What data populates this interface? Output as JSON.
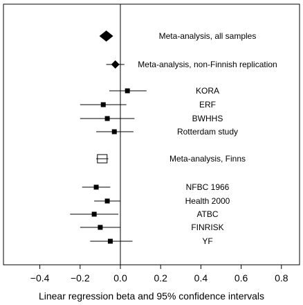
{
  "chart_data": {
    "type": "forest",
    "xlabel": "Linear regression beta and 95% confidence intervals",
    "xlim": [
      -0.5,
      0.85
    ],
    "xticks": [
      -0.4,
      -0.2,
      0.0,
      0.2,
      0.4,
      0.6,
      0.8
    ],
    "xtick_labels": [
      "−0.4",
      "−0.2",
      "0.0",
      "0.2",
      "0.4",
      "0.6",
      "0.8"
    ],
    "reference_line": 0,
    "grid": false,
    "rows": [
      {
        "label": "Meta-analysis, all samples",
        "estimate": -0.07,
        "lower": -0.085,
        "upper": -0.055,
        "marker": "diamond-large"
      },
      {
        "label": "Meta-analysis, non-Finnish replication",
        "estimate": -0.025,
        "lower": -0.07,
        "upper": 0.02,
        "marker": "diamond"
      },
      {
        "label": "KORA",
        "estimate": 0.035,
        "lower": -0.055,
        "upper": 0.13,
        "marker": "square"
      },
      {
        "label": "ERF",
        "estimate": -0.085,
        "lower": -0.2,
        "upper": 0.03,
        "marker": "square"
      },
      {
        "label": "BWHHS",
        "estimate": -0.065,
        "lower": -0.2,
        "upper": 0.07,
        "marker": "square"
      },
      {
        "label": "Rotterdam study",
        "estimate": -0.03,
        "lower": -0.12,
        "upper": 0.065,
        "marker": "square"
      },
      {
        "label": "Meta-analysis, Finns",
        "estimate": -0.09,
        "lower": -0.12,
        "upper": -0.06,
        "marker": "open-square"
      },
      {
        "label": "NFBC 1966",
        "estimate": -0.12,
        "lower": -0.19,
        "upper": -0.05,
        "marker": "square"
      },
      {
        "label": "Health 2000",
        "estimate": -0.065,
        "lower": -0.13,
        "upper": 0.0,
        "marker": "square"
      },
      {
        "label": "ATBC",
        "estimate": -0.13,
        "lower": -0.25,
        "upper": -0.01,
        "marker": "square"
      },
      {
        "label": "FINRISK",
        "estimate": -0.1,
        "lower": -0.2,
        "upper": 0.0,
        "marker": "square"
      },
      {
        "label": "YF",
        "estimate": -0.05,
        "lower": -0.15,
        "upper": 0.06,
        "marker": "square"
      }
    ]
  }
}
